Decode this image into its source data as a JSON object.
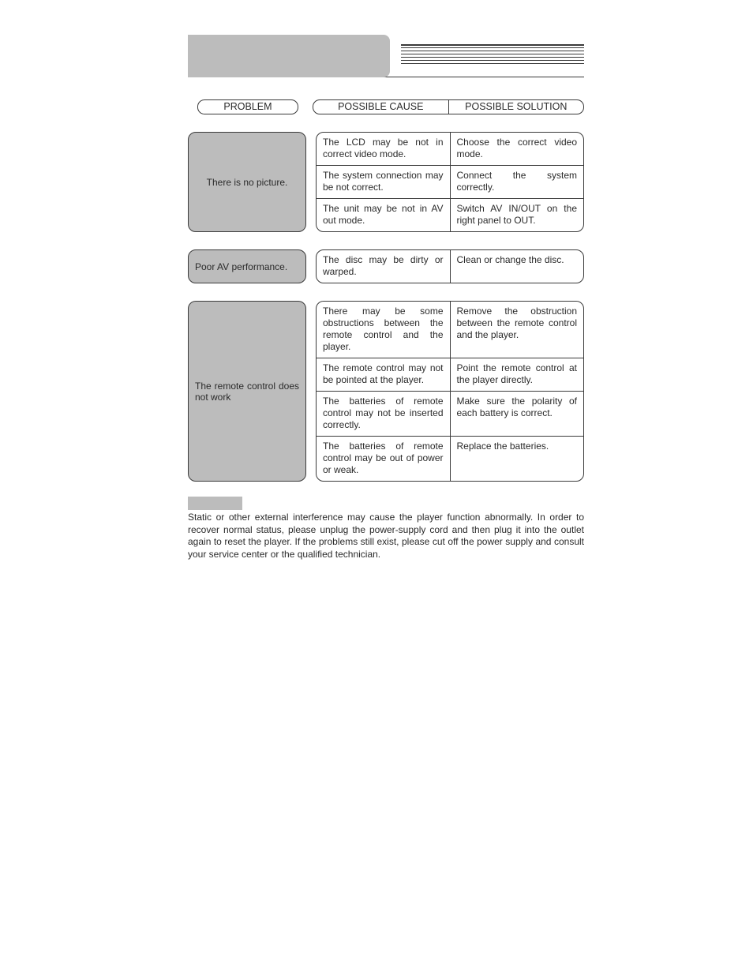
{
  "colors": {
    "grey_fill": "#bcbcbc",
    "border": "#3a3a3a",
    "text": "#2a2a2a",
    "background": "#ffffff"
  },
  "typography": {
    "body_fontsize_pt": 9,
    "header_fontsize_pt": 9.5,
    "font_family": "Arial"
  },
  "headers": {
    "problem": "PROBLEM",
    "cause": "POSSIBLE CAUSE",
    "solution": "POSSIBLE SOLUTION"
  },
  "rows": [
    {
      "problem": "There is no picture.",
      "items": [
        {
          "cause": "The LCD may be not in correct video mode.",
          "solution": "Choose the correct video mode."
        },
        {
          "cause": "The system connection may be not correct.",
          "solution": "Connect the system correctly."
        },
        {
          "cause": "The unit may be not in AV out mode.",
          "solution": "Switch AV IN/OUT on the right panel to OUT."
        }
      ]
    },
    {
      "problem": "Poor AV performance.",
      "items": [
        {
          "cause": "The disc may be dirty or warped.",
          "solution": "Clean or change the disc."
        }
      ]
    },
    {
      "problem": "The remote control does not work",
      "items": [
        {
          "cause": "There may be some obstructions between the remote control and the player.",
          "solution": "Remove the obstruction between the remote control and the player."
        },
        {
          "cause": "The remote control may not be pointed at the player.",
          "solution": "Point the remote control at the player directly."
        },
        {
          "cause": "The batteries of remote control may not be inserted correctly.",
          "solution": "Make sure the polarity of each battery is correct."
        },
        {
          "cause": "The batteries of remote control may be out of power or weak.",
          "solution": "Replace the batteries."
        }
      ]
    }
  ],
  "note": {
    "body": "Static or other external interference may cause the player function abnormally. In order to recover normal status, please unplug the power-supply cord and then plug it into the outlet again to reset the player. If the problems still exist, please cut off the power supply and consult your service center or the qualified technician."
  }
}
